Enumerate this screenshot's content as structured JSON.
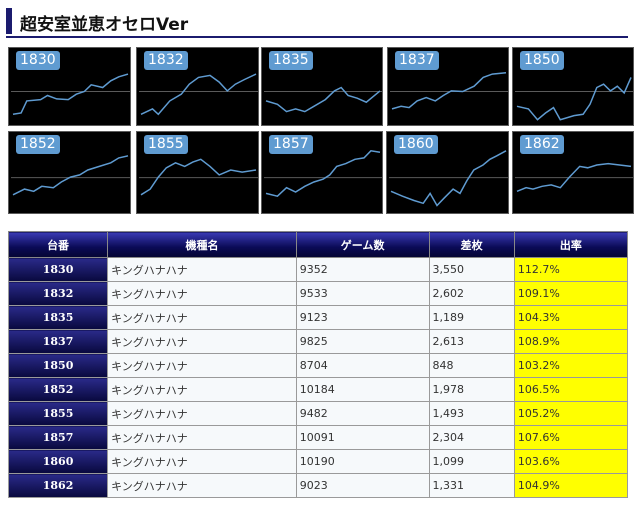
{
  "page_title": "超安室並恵オセロVer",
  "tiles": [
    {
      "label": "1830",
      "points": [
        [
          0,
          0.9
        ],
        [
          0.07,
          0.88
        ],
        [
          0.12,
          0.7
        ],
        [
          0.24,
          0.68
        ],
        [
          0.3,
          0.62
        ],
        [
          0.38,
          0.67
        ],
        [
          0.48,
          0.68
        ],
        [
          0.55,
          0.6
        ],
        [
          0.62,
          0.56
        ],
        [
          0.68,
          0.46
        ],
        [
          0.78,
          0.5
        ],
        [
          0.85,
          0.4
        ],
        [
          0.92,
          0.34
        ],
        [
          1.0,
          0.3
        ]
      ]
    },
    {
      "label": "1832",
      "points": [
        [
          0,
          0.9
        ],
        [
          0.1,
          0.82
        ],
        [
          0.15,
          0.9
        ],
        [
          0.25,
          0.7
        ],
        [
          0.35,
          0.6
        ],
        [
          0.42,
          0.45
        ],
        [
          0.5,
          0.35
        ],
        [
          0.6,
          0.32
        ],
        [
          0.68,
          0.42
        ],
        [
          0.75,
          0.55
        ],
        [
          0.82,
          0.45
        ],
        [
          0.9,
          0.38
        ],
        [
          1.0,
          0.3
        ]
      ]
    },
    {
      "label": "1835",
      "points": [
        [
          0,
          0.7
        ],
        [
          0.1,
          0.75
        ],
        [
          0.18,
          0.86
        ],
        [
          0.26,
          0.82
        ],
        [
          0.34,
          0.86
        ],
        [
          0.42,
          0.78
        ],
        [
          0.52,
          0.68
        ],
        [
          0.6,
          0.55
        ],
        [
          0.66,
          0.5
        ],
        [
          0.72,
          0.62
        ],
        [
          0.8,
          0.66
        ],
        [
          0.88,
          0.72
        ],
        [
          1.0,
          0.55
        ]
      ]
    },
    {
      "label": "1837",
      "points": [
        [
          0,
          0.82
        ],
        [
          0.08,
          0.78
        ],
        [
          0.15,
          0.8
        ],
        [
          0.22,
          0.7
        ],
        [
          0.3,
          0.65
        ],
        [
          0.38,
          0.7
        ],
        [
          0.45,
          0.62
        ],
        [
          0.52,
          0.55
        ],
        [
          0.62,
          0.56
        ],
        [
          0.72,
          0.48
        ],
        [
          0.8,
          0.35
        ],
        [
          0.88,
          0.3
        ],
        [
          1.0,
          0.28
        ]
      ]
    },
    {
      "label": "1850",
      "points": [
        [
          0,
          0.78
        ],
        [
          0.1,
          0.82
        ],
        [
          0.18,
          0.98
        ],
        [
          0.25,
          0.88
        ],
        [
          0.32,
          0.8
        ],
        [
          0.38,
          0.98
        ],
        [
          0.5,
          0.92
        ],
        [
          0.58,
          0.9
        ],
        [
          0.64,
          0.75
        ],
        [
          0.7,
          0.5
        ],
        [
          0.76,
          0.45
        ],
        [
          0.82,
          0.55
        ],
        [
          0.88,
          0.48
        ],
        [
          0.94,
          0.58
        ],
        [
          1.0,
          0.35
        ]
      ]
    },
    {
      "label": "1852",
      "points": [
        [
          0,
          0.8
        ],
        [
          0.1,
          0.72
        ],
        [
          0.18,
          0.75
        ],
        [
          0.25,
          0.68
        ],
        [
          0.35,
          0.7
        ],
        [
          0.42,
          0.62
        ],
        [
          0.5,
          0.55
        ],
        [
          0.58,
          0.52
        ],
        [
          0.65,
          0.45
        ],
        [
          0.75,
          0.4
        ],
        [
          0.85,
          0.35
        ],
        [
          0.92,
          0.28
        ],
        [
          1.0,
          0.25
        ]
      ]
    },
    {
      "label": "1855",
      "points": [
        [
          0,
          0.8
        ],
        [
          0.08,
          0.72
        ],
        [
          0.15,
          0.55
        ],
        [
          0.22,
          0.42
        ],
        [
          0.3,
          0.35
        ],
        [
          0.38,
          0.4
        ],
        [
          0.45,
          0.34
        ],
        [
          0.52,
          0.3
        ],
        [
          0.6,
          0.4
        ],
        [
          0.68,
          0.52
        ],
        [
          0.78,
          0.45
        ],
        [
          0.88,
          0.48
        ],
        [
          1.0,
          0.45
        ]
      ]
    },
    {
      "label": "1857",
      "points": [
        [
          0,
          0.78
        ],
        [
          0.1,
          0.82
        ],
        [
          0.18,
          0.7
        ],
        [
          0.26,
          0.76
        ],
        [
          0.34,
          0.68
        ],
        [
          0.42,
          0.62
        ],
        [
          0.5,
          0.58
        ],
        [
          0.56,
          0.52
        ],
        [
          0.62,
          0.4
        ],
        [
          0.7,
          0.36
        ],
        [
          0.78,
          0.3
        ],
        [
          0.86,
          0.28
        ],
        [
          0.92,
          0.18
        ],
        [
          1.0,
          0.2
        ]
      ]
    },
    {
      "label": "1860",
      "points": [
        [
          0,
          0.75
        ],
        [
          0.1,
          0.82
        ],
        [
          0.2,
          0.88
        ],
        [
          0.28,
          0.92
        ],
        [
          0.34,
          0.78
        ],
        [
          0.4,
          0.95
        ],
        [
          0.46,
          0.85
        ],
        [
          0.54,
          0.72
        ],
        [
          0.6,
          0.78
        ],
        [
          0.66,
          0.6
        ],
        [
          0.72,
          0.45
        ],
        [
          0.8,
          0.38
        ],
        [
          0.86,
          0.3
        ],
        [
          0.92,
          0.25
        ],
        [
          1.0,
          0.18
        ]
      ]
    },
    {
      "label": "1862",
      "points": [
        [
          0,
          0.75
        ],
        [
          0.08,
          0.7
        ],
        [
          0.14,
          0.72
        ],
        [
          0.22,
          0.68
        ],
        [
          0.3,
          0.66
        ],
        [
          0.38,
          0.7
        ],
        [
          0.46,
          0.55
        ],
        [
          0.55,
          0.4
        ],
        [
          0.62,
          0.42
        ],
        [
          0.7,
          0.38
        ],
        [
          0.8,
          0.36
        ],
        [
          0.9,
          0.38
        ],
        [
          1.0,
          0.4
        ]
      ]
    }
  ],
  "table": {
    "headers": [
      "台番",
      "機種名",
      "ゲーム数",
      "差枚",
      "出率"
    ],
    "rows": [
      {
        "num": "1830",
        "machine": "キングハナハナ",
        "games": "9352",
        "diff": "3,550",
        "rate": "112.7%"
      },
      {
        "num": "1832",
        "machine": "キングハナハナ",
        "games": "9533",
        "diff": "2,602",
        "rate": "109.1%"
      },
      {
        "num": "1835",
        "machine": "キングハナハナ",
        "games": "9123",
        "diff": "1,189",
        "rate": "104.3%"
      },
      {
        "num": "1837",
        "machine": "キングハナハナ",
        "games": "9825",
        "diff": "2,613",
        "rate": "108.9%"
      },
      {
        "num": "1850",
        "machine": "キングハナハナ",
        "games": "8704",
        "diff": "848",
        "rate": "103.2%"
      },
      {
        "num": "1852",
        "machine": "キングハナハナ",
        "games": "10184",
        "diff": "1,978",
        "rate": "106.5%"
      },
      {
        "num": "1855",
        "machine": "キングハナハナ",
        "games": "9482",
        "diff": "1,493",
        "rate": "105.2%"
      },
      {
        "num": "1857",
        "machine": "キングハナハナ",
        "games": "10091",
        "diff": "2,304",
        "rate": "107.6%"
      },
      {
        "num": "1860",
        "machine": "キングハナハナ",
        "games": "10190",
        "diff": "1,099",
        "rate": "103.6%"
      },
      {
        "num": "1862",
        "machine": "キングハナハナ",
        "games": "9023",
        "diff": "1,331",
        "rate": "104.9%"
      }
    ]
  },
  "colors": {
    "graph_line": "#5f9bd1",
    "header_bar": "#1b1b6e",
    "rate_highlight": "#ffff00"
  }
}
